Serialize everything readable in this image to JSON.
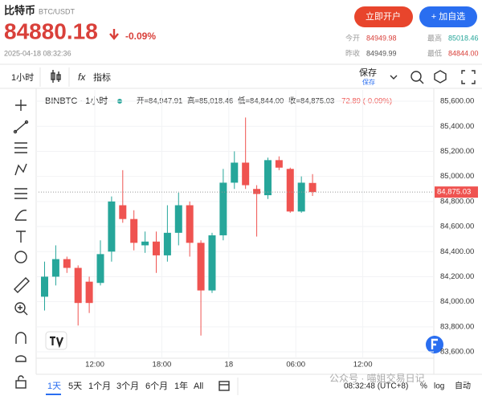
{
  "header": {
    "title": "比特币",
    "pair": "BTC/USDT",
    "open_account": "立即开户",
    "add_watch": "+ 加自选",
    "price": "84880.18",
    "change": "-0.09%",
    "datetime": "2025-04-18 08:32:36",
    "stats": [
      [
        "今开",
        "84949.98"
      ],
      [
        "最高",
        "85018.46"
      ],
      [
        "昨收",
        "84949.99"
      ],
      [
        "最低",
        "84844.00"
      ]
    ]
  },
  "toolbar": {
    "interval": "1小时",
    "fx": "fx",
    "indicators": "指标",
    "save": "保存",
    "save_sub": "保存"
  },
  "chart_data": {
    "type": "candlestick",
    "title": "BINBTC · 1小时",
    "info": [
      "开=84,947.91",
      "高=85,018.46",
      "低=84,844.00",
      "收=84,875.03",
      "-72.89 (-0.09%)"
    ],
    "x": [
      7.5,
      8.5,
      9.5,
      10.5,
      11.5,
      12.5,
      13.5,
      14.5,
      15.5,
      16.5,
      17.5,
      18.5,
      19.5,
      20.5,
      21.5,
      22.5,
      23.5,
      24.5,
      25.5,
      26.5,
      27.5,
      28.5,
      29.5,
      30.5,
      31.5
    ],
    "open": [
      84040,
      84200,
      84340,
      84270,
      84160,
      84150,
      84400,
      84770,
      84660,
      84450,
      84480,
      84370,
      84550,
      84770,
      84470,
      84090,
      84530,
      84950,
      85110,
      84900,
      84850,
      85130,
      85060,
      84720,
      84947.91
    ],
    "high": [
      84320,
      84450,
      84360,
      84290,
      84200,
      84490,
      84840,
      85050,
      84730,
      84560,
      84560,
      84770,
      84870,
      84800,
      84490,
      84550,
      85060,
      85200,
      85470,
      84930,
      85150,
      85160,
      85070,
      85000,
      85018.46
    ],
    "low": [
      83930,
      84130,
      84230,
      83810,
      83910,
      84130,
      84320,
      84630,
      84410,
      84390,
      84230,
      84320,
      84450,
      84360,
      83730,
      84070,
      84490,
      84900,
      84900,
      84520,
      84820,
      85050,
      84710,
      84710,
      84844.0
    ],
    "close": [
      84200,
      84340,
      84270,
      83990,
      83990,
      84380,
      84800,
      84660,
      84470,
      84480,
      84370,
      84550,
      84770,
      84470,
      84090,
      84530,
      84950,
      85110,
      84930,
      84860,
      85130,
      85070,
      84720,
      84950,
      84875.03
    ],
    "up_color": "#26a69a",
    "down_color": "#ef5350",
    "xlim": [
      6.96,
      42.36
    ],
    "xticks": [
      {
        "value": 12,
        "label": "12:00"
      },
      {
        "value": 18,
        "label": "18:00"
      },
      {
        "value": 24,
        "label": "18"
      },
      {
        "value": 30,
        "label": "06:00"
      },
      {
        "value": 36,
        "label": "12:00"
      }
    ],
    "ylim": [
      83549,
      85690
    ],
    "yticks": [
      {
        "value": 83600,
        "label": "83,600.00"
      },
      {
        "value": 83800,
        "label": "83,800.00"
      },
      {
        "value": 84000,
        "label": "84,000.00"
      },
      {
        "value": 84200,
        "label": "84,200.00"
      },
      {
        "value": 84400,
        "label": "84,400.00"
      },
      {
        "value": 84600,
        "label": "84,600.00"
      },
      {
        "value": 84800,
        "label": "84,800.00"
      },
      {
        "value": 85000,
        "label": "85,000.00"
      },
      {
        "value": 85200,
        "label": "85,200.00"
      },
      {
        "value": 85400,
        "label": "85,400.00"
      },
      {
        "value": 85600,
        "label": "85,600.00"
      }
    ],
    "last_price": {
      "value": 84875.03,
      "label": "84,875.03"
    },
    "grid": true
  },
  "footer": {
    "ranges": [
      "1天",
      "5天",
      "1个月",
      "3个月",
      "6个月",
      "1年",
      "All"
    ],
    "time": "08:32:48 (UTC+8)",
    "percent": "%",
    "log": "log",
    "auto": "自动",
    "watermark": "公众号 · 喵姐交易日记"
  }
}
